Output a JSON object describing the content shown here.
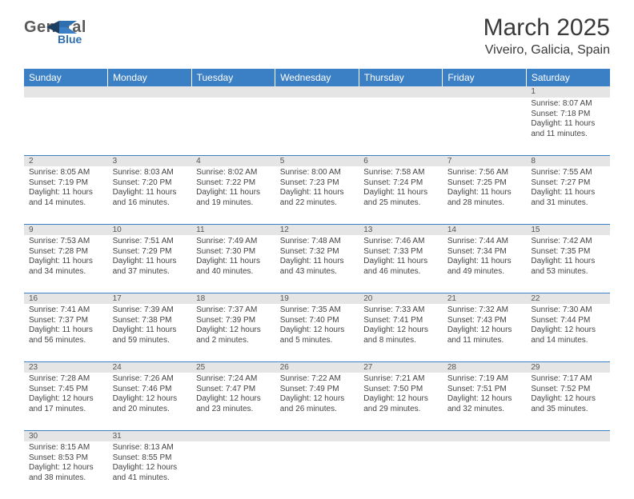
{
  "brand": {
    "general": "General",
    "blue": "Blue"
  },
  "title": "March 2025",
  "location": "Viveiro, Galicia, Spain",
  "colors": {
    "header_bg": "#3b7fc4",
    "header_text": "#ffffff",
    "daynum_bg": "#e5e5e5",
    "rule": "#3b7fc4",
    "body_text": "#444444",
    "logo_gray": "#5a5a5a",
    "logo_blue": "#2f6fb0"
  },
  "weekdays": [
    "Sunday",
    "Monday",
    "Tuesday",
    "Wednesday",
    "Thursday",
    "Friday",
    "Saturday"
  ],
  "weeks": [
    [
      null,
      null,
      null,
      null,
      null,
      null,
      {
        "n": "1",
        "sr": "Sunrise: 8:07 AM",
        "ss": "Sunset: 7:18 PM",
        "dl": "Daylight: 11 hours and 11 minutes."
      }
    ],
    [
      {
        "n": "2",
        "sr": "Sunrise: 8:05 AM",
        "ss": "Sunset: 7:19 PM",
        "dl": "Daylight: 11 hours and 14 minutes."
      },
      {
        "n": "3",
        "sr": "Sunrise: 8:03 AM",
        "ss": "Sunset: 7:20 PM",
        "dl": "Daylight: 11 hours and 16 minutes."
      },
      {
        "n": "4",
        "sr": "Sunrise: 8:02 AM",
        "ss": "Sunset: 7:22 PM",
        "dl": "Daylight: 11 hours and 19 minutes."
      },
      {
        "n": "5",
        "sr": "Sunrise: 8:00 AM",
        "ss": "Sunset: 7:23 PM",
        "dl": "Daylight: 11 hours and 22 minutes."
      },
      {
        "n": "6",
        "sr": "Sunrise: 7:58 AM",
        "ss": "Sunset: 7:24 PM",
        "dl": "Daylight: 11 hours and 25 minutes."
      },
      {
        "n": "7",
        "sr": "Sunrise: 7:56 AM",
        "ss": "Sunset: 7:25 PM",
        "dl": "Daylight: 11 hours and 28 minutes."
      },
      {
        "n": "8",
        "sr": "Sunrise: 7:55 AM",
        "ss": "Sunset: 7:27 PM",
        "dl": "Daylight: 11 hours and 31 minutes."
      }
    ],
    [
      {
        "n": "9",
        "sr": "Sunrise: 7:53 AM",
        "ss": "Sunset: 7:28 PM",
        "dl": "Daylight: 11 hours and 34 minutes."
      },
      {
        "n": "10",
        "sr": "Sunrise: 7:51 AM",
        "ss": "Sunset: 7:29 PM",
        "dl": "Daylight: 11 hours and 37 minutes."
      },
      {
        "n": "11",
        "sr": "Sunrise: 7:49 AM",
        "ss": "Sunset: 7:30 PM",
        "dl": "Daylight: 11 hours and 40 minutes."
      },
      {
        "n": "12",
        "sr": "Sunrise: 7:48 AM",
        "ss": "Sunset: 7:32 PM",
        "dl": "Daylight: 11 hours and 43 minutes."
      },
      {
        "n": "13",
        "sr": "Sunrise: 7:46 AM",
        "ss": "Sunset: 7:33 PM",
        "dl": "Daylight: 11 hours and 46 minutes."
      },
      {
        "n": "14",
        "sr": "Sunrise: 7:44 AM",
        "ss": "Sunset: 7:34 PM",
        "dl": "Daylight: 11 hours and 49 minutes."
      },
      {
        "n": "15",
        "sr": "Sunrise: 7:42 AM",
        "ss": "Sunset: 7:35 PM",
        "dl": "Daylight: 11 hours and 53 minutes."
      }
    ],
    [
      {
        "n": "16",
        "sr": "Sunrise: 7:41 AM",
        "ss": "Sunset: 7:37 PM",
        "dl": "Daylight: 11 hours and 56 minutes."
      },
      {
        "n": "17",
        "sr": "Sunrise: 7:39 AM",
        "ss": "Sunset: 7:38 PM",
        "dl": "Daylight: 11 hours and 59 minutes."
      },
      {
        "n": "18",
        "sr": "Sunrise: 7:37 AM",
        "ss": "Sunset: 7:39 PM",
        "dl": "Daylight: 12 hours and 2 minutes."
      },
      {
        "n": "19",
        "sr": "Sunrise: 7:35 AM",
        "ss": "Sunset: 7:40 PM",
        "dl": "Daylight: 12 hours and 5 minutes."
      },
      {
        "n": "20",
        "sr": "Sunrise: 7:33 AM",
        "ss": "Sunset: 7:41 PM",
        "dl": "Daylight: 12 hours and 8 minutes."
      },
      {
        "n": "21",
        "sr": "Sunrise: 7:32 AM",
        "ss": "Sunset: 7:43 PM",
        "dl": "Daylight: 12 hours and 11 minutes."
      },
      {
        "n": "22",
        "sr": "Sunrise: 7:30 AM",
        "ss": "Sunset: 7:44 PM",
        "dl": "Daylight: 12 hours and 14 minutes."
      }
    ],
    [
      {
        "n": "23",
        "sr": "Sunrise: 7:28 AM",
        "ss": "Sunset: 7:45 PM",
        "dl": "Daylight: 12 hours and 17 minutes."
      },
      {
        "n": "24",
        "sr": "Sunrise: 7:26 AM",
        "ss": "Sunset: 7:46 PM",
        "dl": "Daylight: 12 hours and 20 minutes."
      },
      {
        "n": "25",
        "sr": "Sunrise: 7:24 AM",
        "ss": "Sunset: 7:47 PM",
        "dl": "Daylight: 12 hours and 23 minutes."
      },
      {
        "n": "26",
        "sr": "Sunrise: 7:22 AM",
        "ss": "Sunset: 7:49 PM",
        "dl": "Daylight: 12 hours and 26 minutes."
      },
      {
        "n": "27",
        "sr": "Sunrise: 7:21 AM",
        "ss": "Sunset: 7:50 PM",
        "dl": "Daylight: 12 hours and 29 minutes."
      },
      {
        "n": "28",
        "sr": "Sunrise: 7:19 AM",
        "ss": "Sunset: 7:51 PM",
        "dl": "Daylight: 12 hours and 32 minutes."
      },
      {
        "n": "29",
        "sr": "Sunrise: 7:17 AM",
        "ss": "Sunset: 7:52 PM",
        "dl": "Daylight: 12 hours and 35 minutes."
      }
    ],
    [
      {
        "n": "30",
        "sr": "Sunrise: 8:15 AM",
        "ss": "Sunset: 8:53 PM",
        "dl": "Daylight: 12 hours and 38 minutes."
      },
      {
        "n": "31",
        "sr": "Sunrise: 8:13 AM",
        "ss": "Sunset: 8:55 PM",
        "dl": "Daylight: 12 hours and 41 minutes."
      },
      null,
      null,
      null,
      null,
      null
    ]
  ]
}
